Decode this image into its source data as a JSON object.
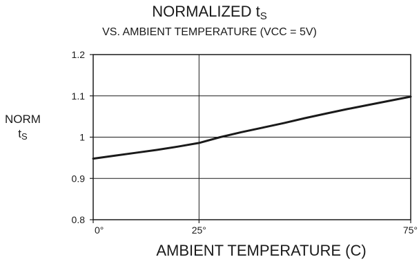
{
  "chart_data": {
    "type": "line",
    "title_main": "NORMALIZED t",
    "title_sub": "S",
    "subtitle": "VS. AMBIENT TEMPERATURE (VCC = 5V)",
    "ylabel_main": "NORM",
    "ylabel_t": "t",
    "ylabel_sub": "S",
    "xlabel": "AMBIENT TEMPERATURE (C)",
    "xlim": [
      0,
      75
    ],
    "ylim": [
      0.8,
      1.2
    ],
    "grid": true,
    "x_ticks": [
      {
        "value": 0,
        "label": "0°"
      },
      {
        "value": 25,
        "label": "25°"
      },
      {
        "value": 75,
        "label": "75°"
      }
    ],
    "y_ticks": [
      {
        "value": 0.8,
        "label": "0.8"
      },
      {
        "value": 0.9,
        "label": "0.9"
      },
      {
        "value": 1.0,
        "label": "1"
      },
      {
        "value": 1.1,
        "label": "1.1"
      },
      {
        "value": 1.2,
        "label": "1.2"
      }
    ],
    "series": [
      {
        "x": [
          0,
          5,
          10,
          15,
          20,
          25,
          30,
          35,
          40,
          45,
          50,
          55,
          60,
          65,
          70,
          75
        ],
        "y": [
          0.948,
          0.955,
          0.962,
          0.969,
          0.977,
          0.986,
          1.0,
          1.012,
          1.023,
          1.034,
          1.046,
          1.057,
          1.068,
          1.078,
          1.088,
          1.098
        ],
        "color": "#1a1a1a"
      }
    ]
  }
}
